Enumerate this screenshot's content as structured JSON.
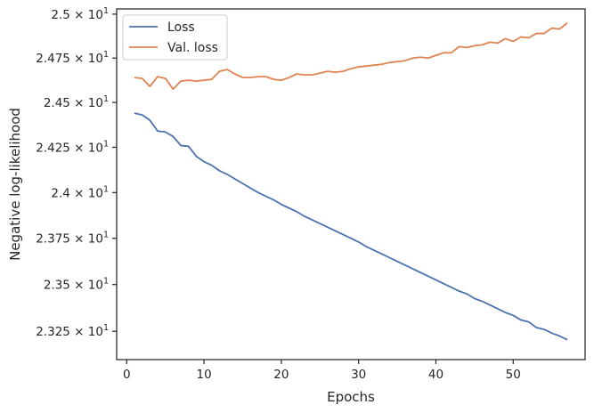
{
  "chart_data": {
    "type": "line",
    "xlabel": "Epochs",
    "ylabel": "Negative log-likelihood",
    "xlim": [
      -1.3,
      59.3
    ],
    "ylim": [
      23.1,
      25.03
    ],
    "y_scale": "log",
    "grid": false,
    "legend_position": "top-left",
    "x_ticks": [
      0,
      10,
      20,
      30,
      40,
      50
    ],
    "y_ticks": [
      {
        "value": 23.25,
        "mantissa": "2.325"
      },
      {
        "value": 23.5,
        "mantissa": "2.35"
      },
      {
        "value": 23.75,
        "mantissa": "2.375"
      },
      {
        "value": 24.0,
        "mantissa": "2.4"
      },
      {
        "value": 24.25,
        "mantissa": "2.425"
      },
      {
        "value": 24.5,
        "mantissa": "2.45"
      },
      {
        "value": 24.75,
        "mantissa": "2.475"
      },
      {
        "value": 25.0,
        "mantissa": "2.5"
      }
    ],
    "y_tick_suffix_base": "10",
    "y_tick_suffix_exp": "1",
    "x": [
      1,
      2,
      3,
      4,
      5,
      6,
      7,
      8,
      9,
      10,
      11,
      12,
      13,
      14,
      15,
      16,
      17,
      18,
      19,
      20,
      21,
      22,
      23,
      24,
      25,
      26,
      27,
      28,
      29,
      30,
      31,
      32,
      33,
      34,
      35,
      36,
      37,
      38,
      39,
      40,
      41,
      42,
      43,
      44,
      45,
      46,
      47,
      48,
      49,
      50,
      51,
      52,
      53,
      54,
      55,
      56,
      57
    ],
    "series": [
      {
        "name": "Loss",
        "color": "#4c72b0",
        "values": [
          24.44,
          24.43,
          24.4,
          24.34,
          24.335,
          24.31,
          24.26,
          24.255,
          24.2,
          24.17,
          24.15,
          24.12,
          24.1,
          24.075,
          24.05,
          24.025,
          24.0,
          23.98,
          23.96,
          23.935,
          23.915,
          23.895,
          23.87,
          23.85,
          23.83,
          23.81,
          23.79,
          23.77,
          23.75,
          23.73,
          23.705,
          23.685,
          23.665,
          23.645,
          23.625,
          23.605,
          23.585,
          23.565,
          23.545,
          23.525,
          23.505,
          23.485,
          23.465,
          23.45,
          23.425,
          23.41,
          23.39,
          23.37,
          23.35,
          23.335,
          23.31,
          23.3,
          23.27,
          23.26,
          23.24,
          23.225,
          23.205
        ]
      },
      {
        "name": "Val. loss",
        "color": "#dd8452",
        "values": [
          24.64,
          24.635,
          24.59,
          24.645,
          24.635,
          24.575,
          24.62,
          24.625,
          24.62,
          24.625,
          24.63,
          24.675,
          24.685,
          24.66,
          24.64,
          24.64,
          24.645,
          24.645,
          24.63,
          24.625,
          24.64,
          24.66,
          24.655,
          24.655,
          24.665,
          24.675,
          24.67,
          24.675,
          24.69,
          24.7,
          24.705,
          24.71,
          24.715,
          24.725,
          24.73,
          24.735,
          24.75,
          24.755,
          24.75,
          24.765,
          24.78,
          24.78,
          24.815,
          24.81,
          24.82,
          24.825,
          24.84,
          24.835,
          24.86,
          24.845,
          24.87,
          24.865,
          24.89,
          24.89,
          24.92,
          24.915,
          24.95
        ]
      }
    ]
  }
}
